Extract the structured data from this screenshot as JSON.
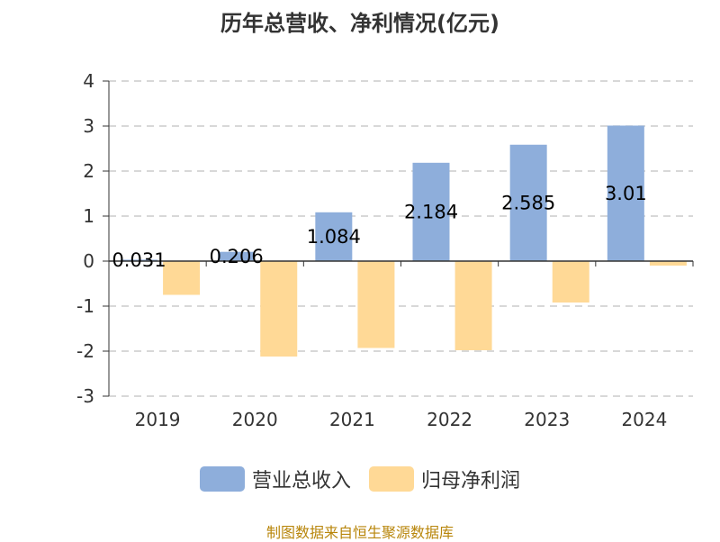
{
  "title": "历年总营收、净利情况(亿元)",
  "source": "制图数据来自恒生聚源数据库",
  "colors": {
    "revenue": "#8eaedb",
    "profit": "#ffd996",
    "grid": "#cccccc",
    "axis": "#333333"
  },
  "chart_data": {
    "type": "bar",
    "title": "历年总营收、净利情况(亿元)",
    "categories": [
      "2019",
      "2020",
      "2021",
      "2022",
      "2023",
      "2024"
    ],
    "series": [
      {
        "name": "营业总收入",
        "values": [
          0.031,
          0.206,
          1.084,
          2.184,
          2.585,
          3.01
        ],
        "labels": [
          "0.031",
          "0.206",
          "1.084",
          "2.184",
          "2.585",
          "3.01"
        ]
      },
      {
        "name": "归母净利润",
        "values": [
          -0.75,
          -2.12,
          -1.93,
          -1.98,
          -0.92,
          -0.1
        ],
        "labels": [
          "",
          "",
          "",
          "",
          "",
          ""
        ]
      }
    ],
    "ylim": [
      -3,
      4
    ],
    "yticks": [
      "-3",
      "-2",
      "-1",
      "0",
      "1",
      "2",
      "3",
      "4"
    ],
    "xlabel": "",
    "ylabel": "",
    "grid": true,
    "legend_position": "bottom"
  }
}
